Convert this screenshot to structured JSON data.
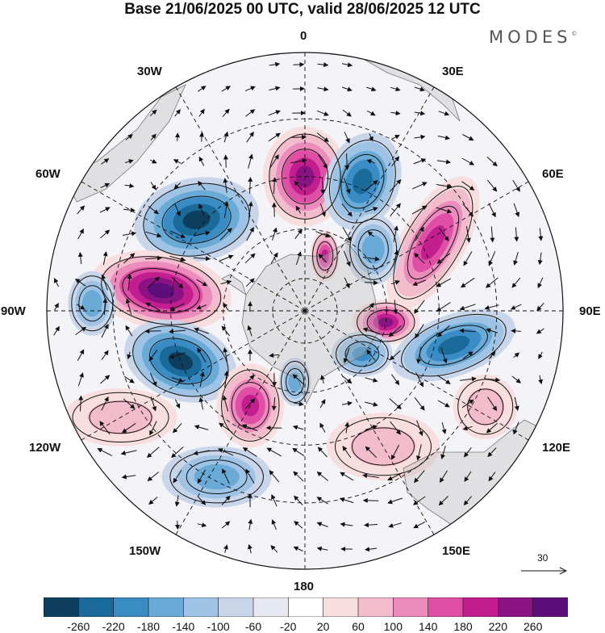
{
  "title": "Base 21/06/2025 00 UTC, valid 28/06/2025 12 UTC",
  "brand": "MODES",
  "brand_mark": "©",
  "longitude_labels": {
    "deg0": "0",
    "deg30e": "30E",
    "deg60e": "60E",
    "deg90e": "90E",
    "deg120e": "120E",
    "deg150e": "150E",
    "deg180": "180",
    "deg150w": "150W",
    "deg120w": "120W",
    "deg90w": "90W",
    "deg60w": "60W",
    "deg30w": "30W"
  },
  "vector_reference": {
    "label": "30"
  },
  "colorbar": {
    "colors": [
      "#0e3e5e",
      "#1a6a9a",
      "#3a8cc4",
      "#6aaad6",
      "#9ec3e4",
      "#c9d6ea",
      "#e8e8f2",
      "#ffffff",
      "#f8dede",
      "#f3bccc",
      "#ec8cbc",
      "#e04fa6",
      "#c21e90",
      "#8a1282",
      "#5c0e7a"
    ],
    "tick_labels": [
      "-260",
      "-220",
      "-180",
      "-140",
      "-100",
      "-60",
      "-20",
      "20",
      "60",
      "100",
      "140",
      "180",
      "220",
      "260"
    ]
  },
  "anomaly_blobs": [
    {
      "name": "high-atlantic-0",
      "lon": 0,
      "colat": 40,
      "rx": 52,
      "ry": 62,
      "rot": 0,
      "levels": [
        "#f8dede",
        "#f3bccc",
        "#ec8cbc",
        "#e04fa6",
        "#c21e90",
        "#8a1282"
      ]
    },
    {
      "name": "low-south-africa",
      "lon": 24,
      "colat": 42,
      "rx": 46,
      "ry": 62,
      "rot": 20,
      "levels": [
        "#c9d6ea",
        "#9ec3e4",
        "#6aaad6",
        "#3a8cc4",
        "#1a6a9a"
      ]
    },
    {
      "name": "low-south-america",
      "lon": -50,
      "colat": 42,
      "rx": 78,
      "ry": 52,
      "rot": -10,
      "levels": [
        "#c9d6ea",
        "#9ec3e4",
        "#6aaad6",
        "#3a8cc4",
        "#1a6a9a",
        "#0e3e5e"
      ]
    },
    {
      "name": "high-pacific-90w",
      "lon": -82,
      "colat": 43,
      "rx": 88,
      "ry": 48,
      "rot": 10,
      "levels": [
        "#f8dede",
        "#f3bccc",
        "#ec8cbc",
        "#e04fa6",
        "#c21e90",
        "#8a1282",
        "#5c0e7a"
      ]
    },
    {
      "name": "low-pacific-110w",
      "lon": -112,
      "colat": 40,
      "rx": 72,
      "ry": 48,
      "rot": 20,
      "levels": [
        "#c9d6ea",
        "#9ec3e4",
        "#6aaad6",
        "#3a8cc4",
        "#1a6a9a",
        "#0e3e5e"
      ]
    },
    {
      "name": "high-pacific-150w",
      "lon": -150,
      "colat": 33,
      "rx": 42,
      "ry": 52,
      "rot": 0,
      "levels": [
        "#f8dede",
        "#f3bccc",
        "#ec8cbc",
        "#e04fa6",
        "#c21e90"
      ]
    },
    {
      "name": "high-indian-60e",
      "lon": 62,
      "colat": 43,
      "rx": 40,
      "ry": 92,
      "rot": 30,
      "levels": [
        "#f8dede",
        "#f3bccc",
        "#ec8cbc",
        "#e04fa6",
        "#c21e90"
      ]
    },
    {
      "name": "high-indian-100e",
      "lon": 98,
      "colat": 25,
      "rx": 42,
      "ry": 28,
      "rot": 0,
      "levels": [
        "#f8dede",
        "#f3bccc",
        "#ec8cbc",
        "#e04fa6",
        "#c21e90",
        "#8a1282"
      ]
    },
    {
      "name": "low-indian-105e",
      "lon": 103,
      "colat": 45,
      "rx": 80,
      "ry": 38,
      "rot": -20,
      "levels": [
        "#c9d6ea",
        "#9ec3e4",
        "#6aaad6",
        "#3a8cc4",
        "#1a6a9a"
      ]
    },
    {
      "name": "low-125e",
      "lon": 127,
      "colat": 22,
      "rx": 38,
      "ry": 28,
      "rot": 0,
      "levels": [
        "#c9d6ea",
        "#9ec3e4",
        "#6aaad6",
        "#3a8cc4"
      ]
    },
    {
      "name": "high-east-ant",
      "lon": 20,
      "colat": 18,
      "rx": 18,
      "ry": 32,
      "rot": 0,
      "levels": [
        "#f8dede",
        "#f3bccc",
        "#ec8cbc",
        "#e04fa6",
        "#c21e90"
      ]
    },
    {
      "name": "low-40e",
      "lon": 48,
      "colat": 28,
      "rx": 34,
      "ry": 44,
      "rot": 0,
      "levels": [
        "#c9d6ea",
        "#9ec3e4",
        "#6aaad6"
      ]
    },
    {
      "name": "low-170w",
      "lon": -172,
      "colat": 22,
      "rx": 20,
      "ry": 30,
      "rot": 0,
      "levels": [
        "#c9d6ea",
        "#9ec3e4",
        "#6aaad6"
      ]
    },
    {
      "name": "high-nz",
      "lon": 150,
      "colat": 46,
      "rx": 70,
      "ry": 42,
      "rot": 0,
      "levels": [
        "#f8dede",
        "#f3bccc"
      ]
    },
    {
      "name": "high-aus",
      "lon": 118,
      "colat": 58,
      "rx": 40,
      "ry": 40,
      "rot": 0,
      "levels": [
        "#f8dede",
        "#f3bccc"
      ]
    },
    {
      "name": "low-150w-edge",
      "lon": -152,
      "colat": 54,
      "rx": 68,
      "ry": 38,
      "rot": 0,
      "levels": [
        "#c9d6ea",
        "#9ec3e4",
        "#6aaad6"
      ]
    },
    {
      "name": "low-60e-edge",
      "lon": -88,
      "colat": 60,
      "rx": 30,
      "ry": 40,
      "rot": 0,
      "levels": [
        "#c9d6ea",
        "#9ec3e4",
        "#6aaad6"
      ]
    },
    {
      "name": "high-120w-edge",
      "lon": -120,
      "colat": 60,
      "rx": 70,
      "ry": 36,
      "rot": 0,
      "levels": [
        "#f8dede",
        "#f3bccc"
      ]
    }
  ]
}
